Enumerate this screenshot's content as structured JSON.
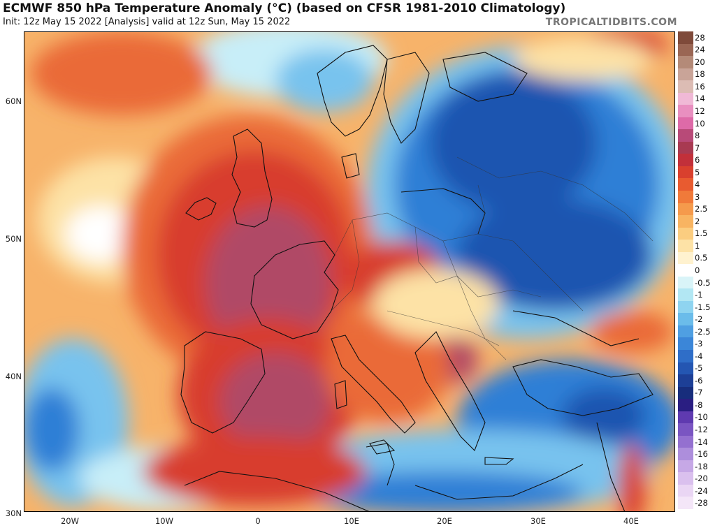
{
  "header": {
    "title": "ECMWF 850 hPa Temperature Anomaly (°C) (based on CFSR 1981-2010 Climatology)",
    "subtitle": "Init: 12z May 15 2022   [Analysis]   valid at 12z Sun, May 15 2022",
    "brand": "TROPICALTIDBITS.COM"
  },
  "map": {
    "extent": {
      "lon": [
        -25,
        45
      ],
      "lat": [
        30,
        65
      ]
    },
    "lat_labels": [
      "60N",
      "50N",
      "40N",
      "30N"
    ],
    "lon_labels": [
      "20W",
      "10W",
      "0",
      "10E",
      "20E",
      "30E",
      "40E"
    ],
    "palette": {
      "warm_strong": "#b04a66",
      "warm": "#d83d2e",
      "warm_mid": "#ea6a38",
      "warm_light": "#f7b36a",
      "warm_pale": "#fde2a6",
      "neutral": "#ffffff",
      "cool_pale": "#c8eef8",
      "cool_light": "#78c3ee",
      "cool": "#2f7fd6",
      "cool_strong": "#1f55b0"
    }
  },
  "colorbar": {
    "levels": [
      {
        "label": "28",
        "color": "#7f4a3a"
      },
      {
        "label": "24",
        "color": "#9a6654"
      },
      {
        "label": "20",
        "color": "#b48a78"
      },
      {
        "label": "18",
        "color": "#c9a498"
      },
      {
        "label": "16",
        "color": "#dcbcb4"
      },
      {
        "label": "14",
        "color": "#f0b9d6"
      },
      {
        "label": "12",
        "color": "#e98fc0"
      },
      {
        "label": "10",
        "color": "#de6aa8"
      },
      {
        "label": "8",
        "color": "#b84a78"
      },
      {
        "label": "7",
        "color": "#a83a52"
      },
      {
        "label": "6",
        "color": "#c2303a"
      },
      {
        "label": "5",
        "color": "#d9402e"
      },
      {
        "label": "4",
        "color": "#e85b30"
      },
      {
        "label": "3",
        "color": "#f07a3a"
      },
      {
        "label": "2.5",
        "color": "#f59a4c"
      },
      {
        "label": "2",
        "color": "#f8b462"
      },
      {
        "label": "1.5",
        "color": "#fbcd80"
      },
      {
        "label": "1",
        "color": "#fde2a6"
      },
      {
        "label": "0.5",
        "color": "#fff2cf"
      },
      {
        "label": "0",
        "color": "#ffffff"
      },
      {
        "label": "-0.5",
        "color": "#d9f4f8"
      },
      {
        "label": "-1",
        "color": "#b2e7f3"
      },
      {
        "label": "-1.5",
        "color": "#8fd4f0"
      },
      {
        "label": "-2",
        "color": "#6bbcea"
      },
      {
        "label": "-2.5",
        "color": "#4f9fe2"
      },
      {
        "label": "-3",
        "color": "#3b86d8"
      },
      {
        "label": "-4",
        "color": "#2f6ec8"
      },
      {
        "label": "-5",
        "color": "#2456b2"
      },
      {
        "label": "-6",
        "color": "#1d3f96"
      },
      {
        "label": "-7",
        "color": "#172d7c"
      },
      {
        "label": "-8",
        "color": "#2a1e82"
      },
      {
        "label": "-10",
        "color": "#5f3ab0"
      },
      {
        "label": "-12",
        "color": "#7a55c2"
      },
      {
        "label": "-14",
        "color": "#9470d0"
      },
      {
        "label": "-16",
        "color": "#ad8edc"
      },
      {
        "label": "-18",
        "color": "#c6a8e6"
      },
      {
        "label": "-20",
        "color": "#dac0ee"
      },
      {
        "label": "-24",
        "color": "#ead6f4"
      },
      {
        "label": "-28",
        "color": "#f4e6f8"
      }
    ]
  }
}
